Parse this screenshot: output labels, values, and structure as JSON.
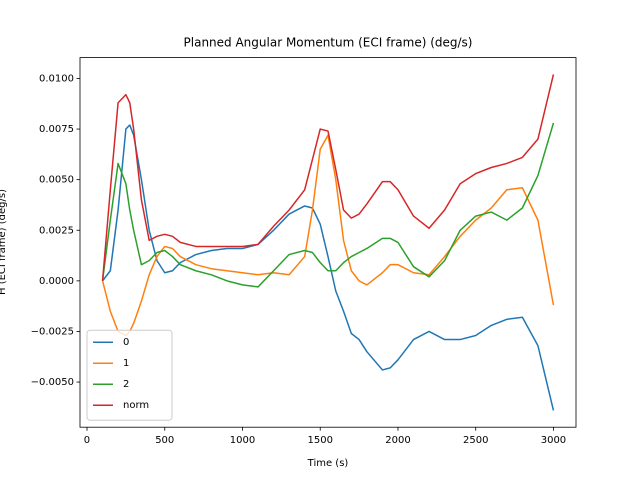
{
  "chart_data": {
    "type": "line",
    "title": "Planned Angular Momentum (ECI frame) (deg/s)",
    "x_label": "Time (s)",
    "y_label": "H (ECI frame) (deg/s)",
    "x": [
      100,
      150,
      200,
      250,
      275,
      300,
      350,
      400,
      450,
      500,
      550,
      600,
      700,
      800,
      900,
      1000,
      1100,
      1200,
      1300,
      1400,
      1450,
      1500,
      1550,
      1600,
      1650,
      1700,
      1750,
      1800,
      1900,
      1950,
      2000,
      2100,
      2200,
      2300,
      2400,
      2500,
      2600,
      2700,
      2800,
      2900,
      3000
    ],
    "series": [
      {
        "name": "0",
        "color": "#1f77b4",
        "values": [
          0,
          0.0005,
          0.0035,
          0.0075,
          0.0077,
          0.0072,
          0.005,
          0.0025,
          0.001,
          0.0004,
          0.0005,
          0.0009,
          0.0013,
          0.0015,
          0.0016,
          0.0016,
          0.0018,
          0.0025,
          0.0033,
          0.0037,
          0.0036,
          0.0028,
          0.0012,
          -0.0005,
          -0.0015,
          -0.0026,
          -0.0029,
          -0.0035,
          -0.0044,
          -0.0043,
          -0.0039,
          -0.0029,
          -0.0025,
          -0.0029,
          -0.0029,
          -0.0027,
          -0.0022,
          -0.0019,
          -0.0018,
          -0.0032,
          -0.0064
        ]
      },
      {
        "name": "1",
        "color": "#ff7f0e",
        "values": [
          0,
          -0.0015,
          -0.0025,
          -0.0027,
          -0.0025,
          -0.0021,
          -0.001,
          0.0003,
          0.0012,
          0.0017,
          0.0016,
          0.0012,
          0.0008,
          0.0006,
          0.0005,
          0.0004,
          0.0003,
          0.0004,
          0.0003,
          0.0012,
          0.0035,
          0.0065,
          0.0072,
          0.005,
          0.002,
          0.0005,
          0,
          -0.0002,
          0.0004,
          0.0008,
          0.0008,
          0.0004,
          0.0003,
          0.0012,
          0.0022,
          0.003,
          0.0036,
          0.0045,
          0.0046,
          0.003,
          -0.0012
        ]
      },
      {
        "name": "2",
        "color": "#2ca02c",
        "values": [
          0,
          0.003,
          0.0058,
          0.0048,
          0.0035,
          0.0025,
          0.0008,
          0.001,
          0.0014,
          0.0015,
          0.0012,
          0.0008,
          0.0005,
          0.0003,
          0,
          -0.0002,
          -0.0003,
          0.0005,
          0.0013,
          0.0015,
          0.0014,
          0.0009,
          0.0005,
          0.0005,
          0.0009,
          0.0012,
          0.0014,
          0.0016,
          0.0021,
          0.0021,
          0.0019,
          0.0007,
          0.0002,
          0.001,
          0.0025,
          0.0032,
          0.0034,
          0.003,
          0.0036,
          0.0052,
          0.0078
        ]
      },
      {
        "name": "norm",
        "color": "#d62728",
        "values": [
          0,
          0.0045,
          0.0088,
          0.0092,
          0.0088,
          0.0075,
          0.004,
          0.002,
          0.0022,
          0.0023,
          0.0022,
          0.0019,
          0.0017,
          0.0017,
          0.0017,
          0.0017,
          0.0018,
          0.0027,
          0.0035,
          0.0045,
          0.006,
          0.0075,
          0.0074,
          0.0055,
          0.0035,
          0.0031,
          0.0033,
          0.0038,
          0.0049,
          0.0049,
          0.0045,
          0.0032,
          0.0026,
          0.0035,
          0.0048,
          0.0053,
          0.0056,
          0.0058,
          0.0061,
          0.007,
          0.0102
        ]
      }
    ],
    "xlim": [
      -45,
      3145
    ],
    "xticks": [
      0,
      500,
      1000,
      1500,
      2000,
      2500,
      3000
    ],
    "ylim": [
      -0.00723,
      0.01103
    ],
    "yticks": [
      {
        "value": -0.005,
        "label": "−0.0050"
      },
      {
        "value": -0.0025,
        "label": "−0.0025"
      },
      {
        "value": 0,
        "label": "0.0000"
      },
      {
        "value": 0.0025,
        "label": "0.0025"
      },
      {
        "value": 0.005,
        "label": "0.0050"
      },
      {
        "value": 0.0075,
        "label": "0.0075"
      },
      {
        "value": 0.01,
        "label": "0.0100"
      }
    ],
    "legend": "lower left"
  }
}
